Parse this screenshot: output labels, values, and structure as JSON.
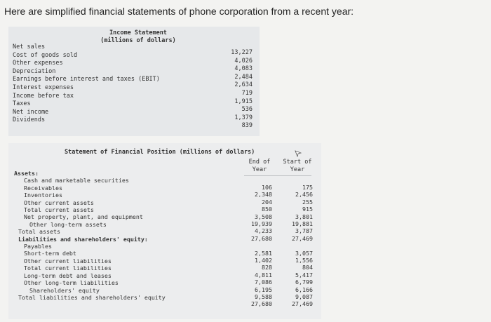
{
  "prompt": "Here are simplified financial statements of phone corporation from a recent year:",
  "income_statement": {
    "title_line1": "Income Statement",
    "title_line2": "(millions of dollars)",
    "rows": [
      {
        "label": "Net sales",
        "value": "13,227"
      },
      {
        "label": "Cost of goods sold",
        "value": "4,026"
      },
      {
        "label": "Other expenses",
        "value": "4,083"
      },
      {
        "label": "Depreciation",
        "value": "2,484"
      },
      {
        "label": "Earnings before interest and taxes (EBIT)",
        "value": "2,634"
      },
      {
        "label": "Interest expenses",
        "value": "719"
      },
      {
        "label": "Income before tax",
        "value": "1,915"
      },
      {
        "label": "Taxes",
        "value": "536"
      },
      {
        "label": "Net income",
        "value": "1,379"
      },
      {
        "label": "Dividends",
        "value": "839"
      }
    ]
  },
  "financial_position": {
    "title": "Statement of Financial Position (millions of dollars)",
    "col_end": {
      "line1": "End of",
      "line2": "Year"
    },
    "col_start": {
      "line1": "Start of",
      "line2": "Year"
    },
    "assets_heading": "Assets:",
    "liabilities_heading": "Liabilities and shareholders' equity:",
    "assets": [
      {
        "label": "Cash and marketable securities",
        "end": "106",
        "start": "175"
      },
      {
        "label": "Receivables",
        "end": "2,348",
        "start": "2,456"
      },
      {
        "label": "Inventories",
        "end": "204",
        "start": "255"
      },
      {
        "label": "Other current assets",
        "end": "850",
        "start": "915"
      },
      {
        "label": "Total current assets",
        "end": "3,508",
        "start": "3,801"
      },
      {
        "label": "Net property, plant, and equipment",
        "end": "19,939",
        "start": "19,881"
      },
      {
        "label": "Other long-term assets",
        "end": "4,233",
        "start": "3,787"
      },
      {
        "label": "Total assets",
        "end": "27,680",
        "start": "27,469"
      }
    ],
    "liabilities": [
      {
        "label": "Payables",
        "end": "2,581",
        "start": "3,057"
      },
      {
        "label": "Short-term debt",
        "end": "1,402",
        "start": "1,556"
      },
      {
        "label": "Other current liabilities",
        "end": "828",
        "start": "804"
      },
      {
        "label": "Total current liabilities",
        "end": "4,811",
        "start": "5,417"
      },
      {
        "label": "Long-term debt and leases",
        "end": "7,086",
        "start": "6,799"
      },
      {
        "label": "Other long-term liabilities",
        "end": "6,195",
        "start": "6,166"
      },
      {
        "label": "Shareholders' equity",
        "end": "9,588",
        "start": "9,087"
      },
      {
        "label": "Total liabilities and shareholders' equity",
        "end": "27,680",
        "start": "27,469"
      }
    ]
  }
}
